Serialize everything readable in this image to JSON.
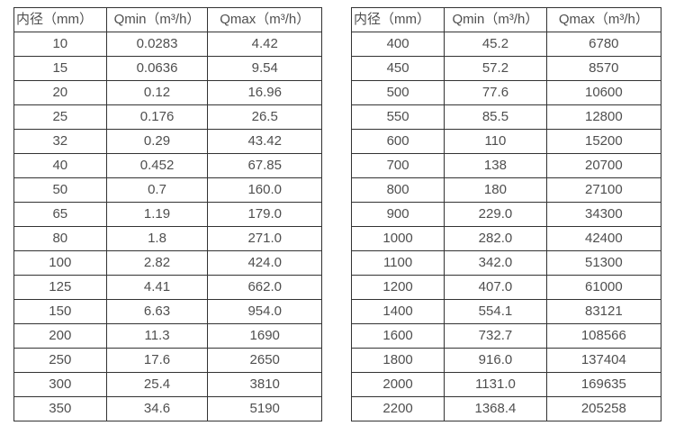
{
  "tables": [
    {
      "name": "flow-table-small-diameters",
      "headers": [
        "内径（mm）",
        "Qmin（m³/h）",
        "Qmax（m³/h）"
      ],
      "rows": [
        [
          "10",
          "0.0283",
          "4.42"
        ],
        [
          "15",
          "0.0636",
          "9.54"
        ],
        [
          "20",
          "0.12",
          "16.96"
        ],
        [
          "25",
          "0.176",
          "26.5"
        ],
        [
          "32",
          "0.29",
          "43.42"
        ],
        [
          "40",
          "0.452",
          "67.85"
        ],
        [
          "50",
          "0.7",
          "160.0"
        ],
        [
          "65",
          "1.19",
          "179.0"
        ],
        [
          "80",
          "1.8",
          "271.0"
        ],
        [
          "100",
          "2.82",
          "424.0"
        ],
        [
          "125",
          "4.41",
          "662.0"
        ],
        [
          "150",
          "6.63",
          "954.0"
        ],
        [
          "200",
          "11.3",
          "1690"
        ],
        [
          "250",
          "17.6",
          "2650"
        ],
        [
          "300",
          "25.4",
          "3810"
        ],
        [
          "350",
          "34.6",
          "5190"
        ]
      ]
    },
    {
      "name": "flow-table-large-diameters",
      "headers": [
        "内径（mm）",
        "Qmin（m³/h）",
        "Qmax（m³/h）"
      ],
      "rows": [
        [
          "400",
          "45.2",
          "6780"
        ],
        [
          "450",
          "57.2",
          "8570"
        ],
        [
          "500",
          "77.6",
          "10600"
        ],
        [
          "550",
          "85.5",
          "12800"
        ],
        [
          "600",
          "110",
          "15200"
        ],
        [
          "700",
          "138",
          "20700"
        ],
        [
          "800",
          "180",
          "27100"
        ],
        [
          "900",
          "229.0",
          "34300"
        ],
        [
          "1000",
          "282.0",
          "42400"
        ],
        [
          "1100",
          "342.0",
          "51300"
        ],
        [
          "1200",
          "407.0",
          "61000"
        ],
        [
          "1400",
          "554.1",
          "83121"
        ],
        [
          "1600",
          "732.7",
          "108566"
        ],
        [
          "1800",
          "916.0",
          "137404"
        ],
        [
          "2000",
          "1131.0",
          "169635"
        ],
        [
          "2200",
          "1368.4",
          "205258"
        ]
      ]
    }
  ],
  "colors": {
    "border": "#333333",
    "text": "#4f4f4f",
    "background": "#ffffff"
  }
}
